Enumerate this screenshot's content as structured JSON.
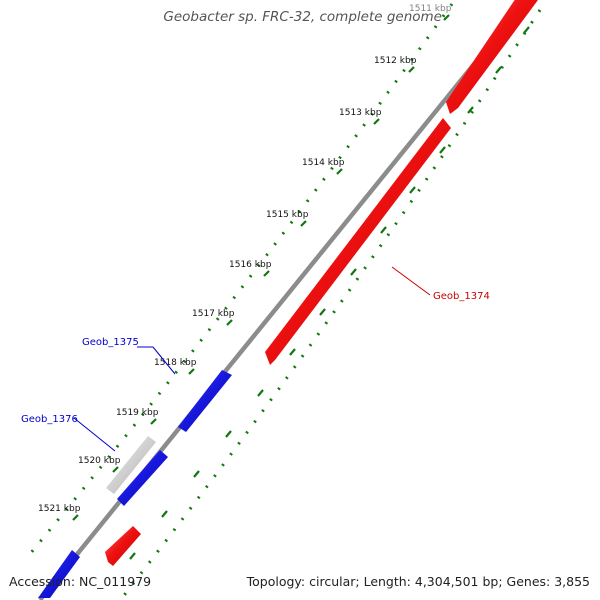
{
  "title": "Geobacter sp. FRC-32, complete genome",
  "accession": "Accession: NC_011979",
  "summary": "Topology: circular; Length: 4,304,501 bp; Genes: 3,855",
  "colors": {
    "backbone": "#8c8c8c",
    "forward_gene": "#ee1111",
    "reverse_gene": "#1111dd",
    "other_gene": "#bdbdbd",
    "tick_dots": "#117711",
    "forward_label": "#cc0000",
    "reverse_label": "#0000cc"
  },
  "ticks": [
    {
      "label": "1511 kbp",
      "kbp": 1511
    },
    {
      "label": "1512 kbp",
      "kbp": 1512
    },
    {
      "label": "1513 kbp",
      "kbp": 1513
    },
    {
      "label": "1514 kbp",
      "kbp": 1514
    },
    {
      "label": "1515 kbp",
      "kbp": 1515
    },
    {
      "label": "1516 kbp",
      "kbp": 1516
    },
    {
      "label": "1517 kbp",
      "kbp": 1517
    },
    {
      "label": "1518 kbp",
      "kbp": 1518
    },
    {
      "label": "1519 kbp",
      "kbp": 1519
    },
    {
      "label": "1520 kbp",
      "kbp": 1520
    },
    {
      "label": "1521 kbp",
      "kbp": 1521
    }
  ],
  "gene_labels": [
    {
      "label": "Geob_1374",
      "strand": "forward"
    },
    {
      "label": "Geob_1375",
      "strand": "reverse"
    },
    {
      "label": "Geob_1376",
      "strand": "reverse"
    }
  ]
}
